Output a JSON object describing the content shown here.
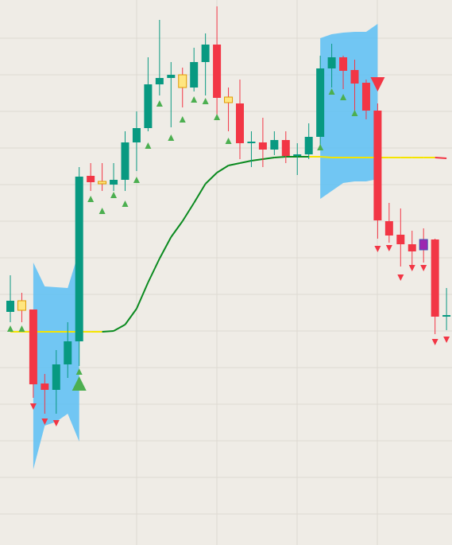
{
  "chart_data": {
    "type": "candlestick",
    "ylim": [
      0,
      685
    ],
    "open": [
      293,
      295,
      296,
      203,
      195,
      227,
      256,
      464,
      454,
      453,
      459,
      506,
      524,
      579,
      587,
      591,
      575,
      607,
      629,
      563,
      555,
      505,
      506,
      497,
      509,
      489,
      491,
      513,
      599,
      613,
      597,
      581,
      546,
      407,
      390,
      378,
      371,
      384,
      287
    ],
    "high": [
      339,
      317,
      296,
      215,
      245,
      280,
      475,
      480,
      480,
      480,
      520,
      545,
      613,
      660,
      607,
      600,
      625,
      643,
      677,
      575,
      585,
      520,
      537,
      520,
      520,
      505,
      530,
      615,
      630,
      615,
      610,
      585,
      555,
      430,
      423,
      395,
      398,
      385,
      323
    ],
    "low": [
      280,
      280,
      185,
      165,
      165,
      210,
      225,
      445,
      445,
      445,
      445,
      470,
      520,
      565,
      525,
      550,
      570,
      565,
      540,
      520,
      485,
      475,
      475,
      490,
      480,
      465,
      485,
      500,
      575,
      573,
      545,
      535,
      385,
      380,
      350,
      350,
      355,
      265,
      270
    ],
    "close": [
      307,
      307,
      202,
      195,
      227,
      256,
      463,
      456,
      457,
      459,
      506,
      524,
      579,
      587,
      591,
      575,
      607,
      629,
      562,
      556,
      505,
      507,
      497,
      509,
      489,
      491,
      513,
      599,
      613,
      596,
      580,
      546,
      408,
      389,
      378,
      369,
      384,
      287,
      289
    ],
    "colors": [
      "#089981",
      "#ffe680",
      "#f23645",
      "#f23645",
      "#089981",
      "#089981",
      "#089981",
      "#f23645",
      "#ffe680",
      "#089981",
      "#089981",
      "#089981",
      "#089981",
      "#089981",
      "#089981",
      "#ffe680",
      "#089981",
      "#089981",
      "#f23645",
      "#ffe680",
      "#f23645",
      "#089981",
      "#f23645",
      "#089981",
      "#f23645",
      "#089981",
      "#089981",
      "#089981",
      "#089981",
      "#f23645",
      "#f23645",
      "#f23645",
      "#f23645",
      "#f23645",
      "#f23645",
      "#f23645",
      "#9c27b0",
      "#f23645",
      "#089981"
    ],
    "ma": {
      "values": [
        268,
        268,
        268,
        268,
        268,
        268,
        268,
        268,
        268,
        269,
        277,
        297,
        330,
        360,
        387,
        407,
        430,
        454,
        468,
        477,
        480,
        483,
        485,
        487,
        488,
        488,
        488,
        488,
        487,
        487,
        487,
        487,
        487,
        487,
        487,
        487,
        487,
        487,
        486
      ],
      "segment_colors": [
        "#f5e400",
        "#f5e400",
        "#f5e400",
        "#f5e400",
        "#f5e400",
        "#f5e400",
        "#f5e400",
        "#f5e400",
        "#0a8a1f",
        "#0a8a1f",
        "#0a8a1f",
        "#0a8a1f",
        "#0a8a1f",
        "#0a8a1f",
        "#0a8a1f",
        "#0a8a1f",
        "#0a8a1f",
        "#0a8a1f",
        "#0a8a1f",
        "#0a8a1f",
        "#0a8a1f",
        "#0a8a1f",
        "#0a8a1f",
        "#0a8a1f",
        "#0a8a1f",
        "#0a8a1f",
        "#f5e400",
        "#f5e400",
        "#f5e400",
        "#f5e400",
        "#f5e400",
        "#f5e400",
        "#f5e400",
        "#f5e400",
        "#f5e400",
        "#f5e400",
        "#f5e400",
        "#f23645"
      ]
    },
    "bands": [
      {
        "start": 2,
        "upper": [
          355,
          325,
          324,
          323,
          370
        ],
        "lower": [
          95,
          150,
          155,
          165,
          130
        ],
        "color": "#5bc0f5"
      },
      {
        "start": 27,
        "upper": [
          637,
          642,
          644,
          645,
          645,
          655
        ],
        "lower": [
          435,
          445,
          455,
          457,
          457,
          460
        ],
        "color": "#5bc0f5"
      }
    ],
    "markers": [
      {
        "i": 0,
        "value": 272,
        "dir": "up"
      },
      {
        "i": 1,
        "value": 272,
        "dir": "up"
      },
      {
        "i": 6,
        "value": 218,
        "dir": "up"
      },
      {
        "i": 6,
        "value": 203,
        "dir": "up",
        "large": true
      },
      {
        "i": 7,
        "value": 435,
        "dir": "up"
      },
      {
        "i": 8,
        "value": 420,
        "dir": "up"
      },
      {
        "i": 9,
        "value": 440,
        "dir": "up"
      },
      {
        "i": 10,
        "value": 429,
        "dir": "up"
      },
      {
        "i": 11,
        "value": 459,
        "dir": "up"
      },
      {
        "i": 12,
        "value": 502,
        "dir": "up"
      },
      {
        "i": 13,
        "value": 555,
        "dir": "up"
      },
      {
        "i": 14,
        "value": 512,
        "dir": "up"
      },
      {
        "i": 15,
        "value": 535,
        "dir": "up"
      },
      {
        "i": 16,
        "value": 560,
        "dir": "up"
      },
      {
        "i": 17,
        "value": 558,
        "dir": "up"
      },
      {
        "i": 18,
        "value": 538,
        "dir": "up"
      },
      {
        "i": 19,
        "value": 508,
        "dir": "up"
      },
      {
        "i": 27,
        "value": 500,
        "dir": "up"
      },
      {
        "i": 28,
        "value": 570,
        "dir": "up"
      },
      {
        "i": 29,
        "value": 563,
        "dir": "up"
      },
      {
        "i": 30,
        "value": 543,
        "dir": "up"
      },
      {
        "i": 2,
        "value": 174,
        "dir": "down"
      },
      {
        "i": 3,
        "value": 155,
        "dir": "down"
      },
      {
        "i": 4,
        "value": 153,
        "dir": "down"
      },
      {
        "i": 32,
        "value": 579,
        "dir": "down",
        "large": true
      },
      {
        "i": 32,
        "value": 372,
        "dir": "down"
      },
      {
        "i": 33,
        "value": 373,
        "dir": "down"
      },
      {
        "i": 34,
        "value": 336,
        "dir": "down"
      },
      {
        "i": 35,
        "value": 348,
        "dir": "down"
      },
      {
        "i": 36,
        "value": 348,
        "dir": "down"
      },
      {
        "i": 37,
        "value": 255,
        "dir": "down"
      },
      {
        "i": 38,
        "value": 258,
        "dir": "down"
      }
    ],
    "up_color": "#4caf50",
    "down_color": "#f23645"
  }
}
